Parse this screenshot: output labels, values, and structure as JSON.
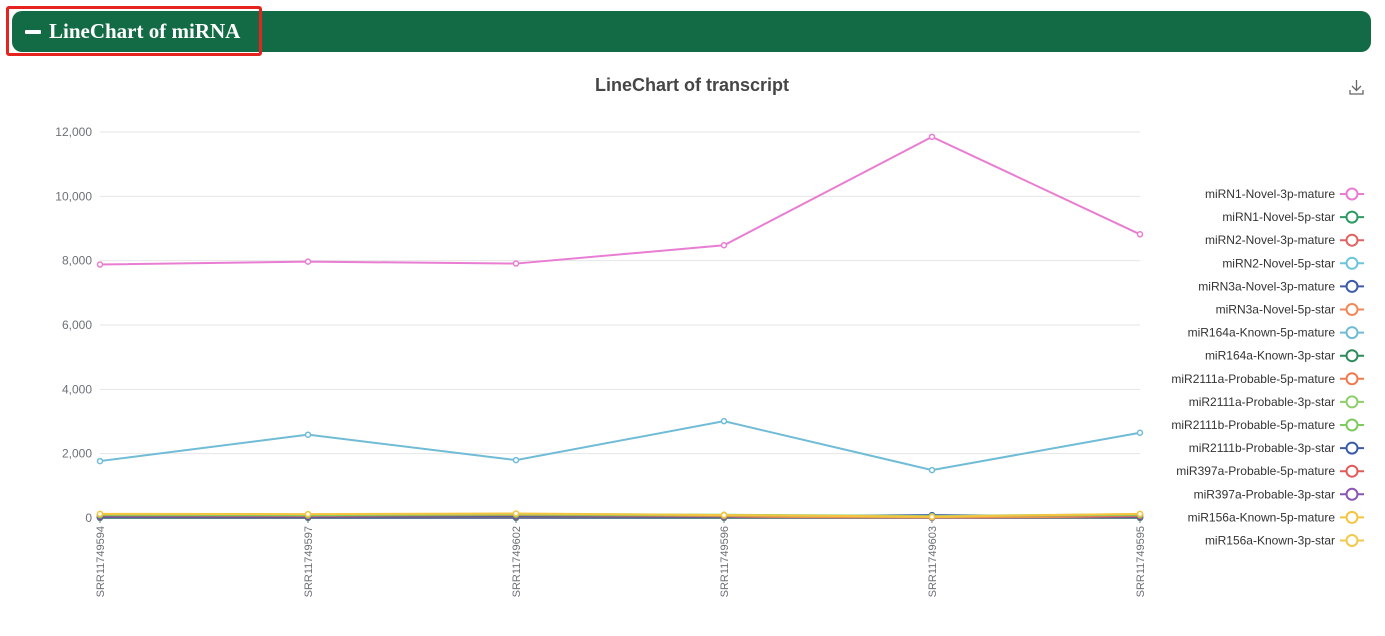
{
  "panel": {
    "title": "LineChart of miRNA",
    "collapse_icon": "minus-icon",
    "header_color": "#136b45",
    "highlight_color": "#e5231f"
  },
  "toolbox": {
    "download_icon": "download-icon"
  },
  "chart_data": {
    "type": "line",
    "title": "LineChart of transcript",
    "xlabel": "",
    "ylabel": "",
    "categories": [
      "SRR11749594",
      "SRR11749597",
      "SRR11749602",
      "SRR11749596",
      "SRR11749603",
      "SRR11749595"
    ],
    "ylim": [
      0,
      12000
    ],
    "yticks": [
      "0",
      "2,000",
      "4,000",
      "6,000",
      "8,000",
      "10,000",
      "12,000"
    ],
    "grid": true,
    "legend_position": "right",
    "series": [
      {
        "name": "miRN1-Novel-3p-mature",
        "color": "#e87dd2",
        "values": [
          7880,
          7970,
          7910,
          8480,
          11850,
          8820
        ]
      },
      {
        "name": "miRN1-Novel-5p-star",
        "color": "#2e9a63",
        "values": [
          20,
          25,
          30,
          20,
          25,
          20
        ]
      },
      {
        "name": "miRN2-Novel-3p-mature",
        "color": "#e36262",
        "values": [
          30,
          30,
          40,
          30,
          20,
          30
        ]
      },
      {
        "name": "miRN2-Novel-5p-star",
        "color": "#6cc6da",
        "values": [
          10,
          15,
          10,
          10,
          10,
          10
        ]
      },
      {
        "name": "miRN3a-Novel-3p-mature",
        "color": "#3e5aa8",
        "values": [
          40,
          40,
          50,
          40,
          90,
          40
        ]
      },
      {
        "name": "miRN3a-Novel-5p-star",
        "color": "#f08a5a",
        "values": [
          60,
          50,
          70,
          40,
          20,
          50
        ]
      },
      {
        "name": "miR164a-Known-5p-mature",
        "color": "#70bcd6",
        "values": [
          1770,
          2590,
          1800,
          3010,
          1490,
          2650
        ]
      },
      {
        "name": "miR164a-Known-3p-star",
        "color": "#2e8a5c",
        "values": [
          10,
          10,
          15,
          10,
          10,
          10
        ]
      },
      {
        "name": "miR2111a-Probable-5p-mature",
        "color": "#f07a50",
        "values": [
          80,
          70,
          90,
          60,
          40,
          70
        ]
      },
      {
        "name": "miR2111a-Probable-3p-star",
        "color": "#8fcf6a",
        "values": [
          120,
          110,
          130,
          100,
          60,
          120
        ]
      },
      {
        "name": "miR2111b-Probable-5p-mature",
        "color": "#7ecb5e",
        "values": [
          100,
          90,
          110,
          80,
          50,
          100
        ]
      },
      {
        "name": "miR2111b-Probable-3p-star",
        "color": "#3a5ba8",
        "values": [
          15,
          15,
          20,
          15,
          15,
          15
        ]
      },
      {
        "name": "miR397a-Probable-5p-mature",
        "color": "#e35a5a",
        "values": [
          10,
          10,
          10,
          10,
          10,
          10
        ]
      },
      {
        "name": "miR397a-Probable-3p-star",
        "color": "#8a55b5",
        "values": [
          5,
          5,
          5,
          5,
          5,
          5
        ]
      },
      {
        "name": "miR156a-Known-5p-mature",
        "color": "#f5c542",
        "values": [
          130,
          120,
          140,
          90,
          40,
          130
        ]
      },
      {
        "name": "miR156a-Known-3p-star",
        "color": "#f2c94c",
        "values": [
          70,
          60,
          80,
          50,
          30,
          60
        ]
      }
    ]
  }
}
